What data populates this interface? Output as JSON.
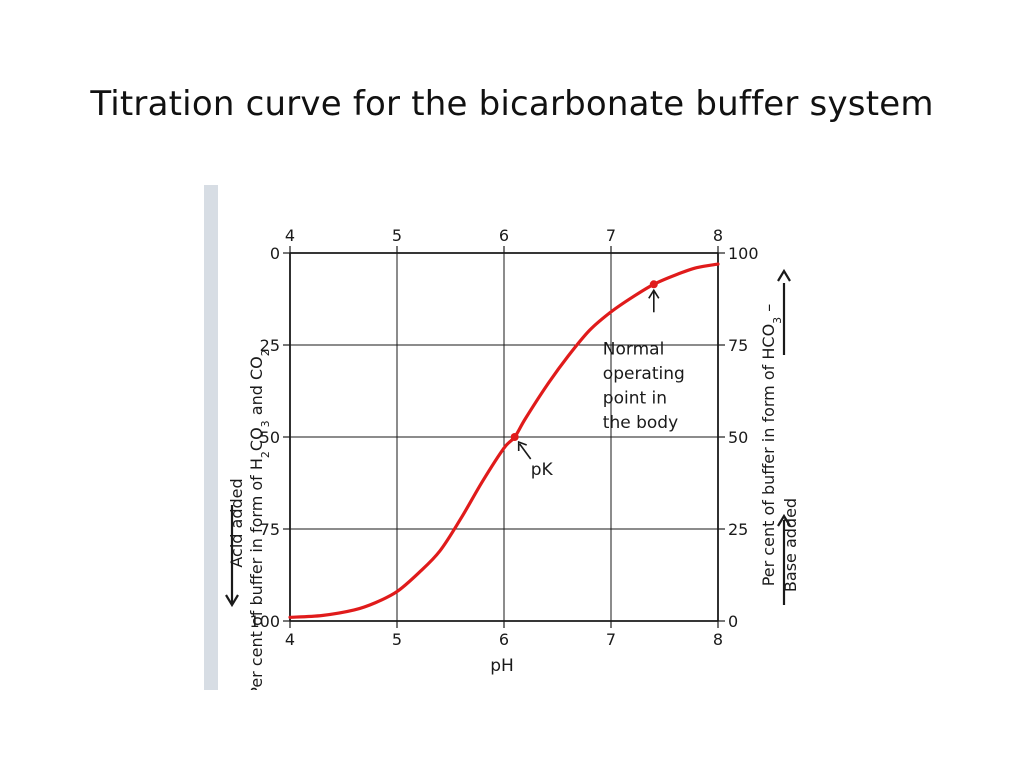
{
  "slide": {
    "title": "Titration curve for the bicarbonate buffer system"
  },
  "chart_data": {
    "type": "line",
    "title": "",
    "xlabel": "pH",
    "xlim": [
      4,
      8
    ],
    "x_ticks": [
      "4",
      "5",
      "6",
      "7",
      "8"
    ],
    "left_axis": {
      "label_line1": "Acid added",
      "label_line2_prefix": "Per cent of buffer in form of H",
      "label_line2_sub1": "2",
      "label_line2_mid": "CO",
      "label_line2_sub2": "3",
      "label_line2_suffix": " and CO",
      "label_line2_sub3": "2",
      "ticks": [
        "0",
        "25",
        "50",
        "75",
        "100"
      ],
      "ylim": [
        0,
        100
      ],
      "inverted": true
    },
    "right_axis": {
      "label_line1_prefix": "Per cent of buffer in form of HCO",
      "label_line1_sub": "3",
      "label_line1_suffix": " –",
      "label_line2": "Base added",
      "ticks": [
        "0",
        "25",
        "50",
        "75",
        "100"
      ],
      "ylim": [
        0,
        100
      ]
    },
    "grid": true,
    "series": [
      {
        "name": "",
        "color": "#e01b1b",
        "x": [
          4.0,
          4.3,
          4.6,
          4.8,
          5.0,
          5.2,
          5.4,
          5.6,
          5.8,
          6.0,
          6.1,
          6.2,
          6.4,
          6.6,
          6.8,
          7.0,
          7.2,
          7.4,
          7.6,
          7.8,
          8.0
        ],
        "y": [
          1,
          1.5,
          3,
          5,
          8,
          13,
          19,
          28,
          38,
          47,
          50,
          55,
          64,
          72,
          79,
          84,
          88,
          91.5,
          94,
          96,
          97
        ]
      }
    ],
    "annotations": [
      {
        "label": "pK",
        "x": 6.1,
        "y": 50
      },
      {
        "label_lines": [
          "Normal",
          "operating",
          "point in",
          "the body"
        ],
        "x": 7.4,
        "y": 91.5
      }
    ]
  }
}
